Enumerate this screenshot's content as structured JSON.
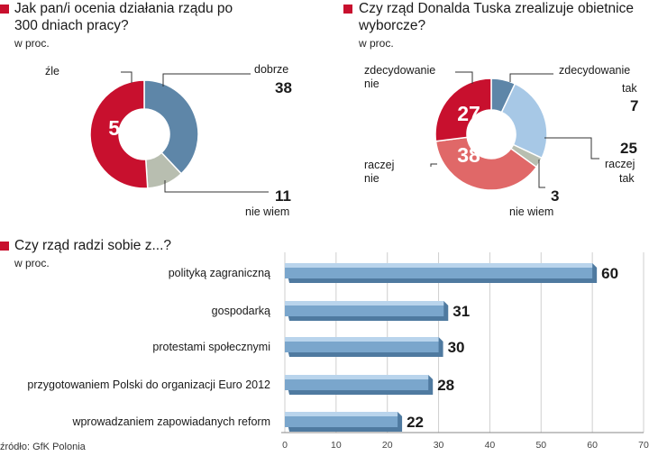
{
  "chart_data": [
    {
      "type": "pie",
      "title": "Jak pan/i ocenia działania rządu po 300 dniach pracy?",
      "subtitle": "w proc.",
      "slices": [
        {
          "label": "dobrze",
          "value": 38,
          "color": "#5e86a8"
        },
        {
          "label": "nie wiem",
          "value": 11,
          "color": "#b8beb0"
        },
        {
          "label": "źle",
          "value": 51,
          "color": "#c8102e"
        }
      ]
    },
    {
      "type": "pie",
      "title": "Czy rząd Donalda Tuska zrealizuje obietnice wyborcze?",
      "subtitle": "w proc.",
      "slices": [
        {
          "label": "zdecydowanie tak",
          "value": 7,
          "color": "#5e86a8"
        },
        {
          "label": "raczej tak",
          "value": 25,
          "color": "#a7c8e6"
        },
        {
          "label": "nie wiem",
          "value": 3,
          "color": "#b8beb0"
        },
        {
          "label": "raczej nie",
          "value": 38,
          "color": "#e06868"
        },
        {
          "label": "zdecydowanie nie",
          "value": 27,
          "color": "#c8102e"
        }
      ]
    },
    {
      "type": "bar",
      "orientation": "horizontal",
      "title": "Czy rząd radzi sobie z...?",
      "subtitle": "w proc.",
      "categories": [
        "polityką zagraniczną",
        "gospodarką",
        "protestami społecznymi",
        "przygotowaniem Polski do organizacji Euro 2012",
        "wprowadzaniem zapowiadanych reform"
      ],
      "values": [
        60,
        31,
        30,
        28,
        22
      ],
      "highlight_color": "#c8102e",
      "bar_color": "#7aa6cc",
      "xlim": [
        0,
        70
      ],
      "xticks": [
        "0",
        "10",
        "20",
        "30",
        "40",
        "50",
        "60",
        "70"
      ]
    }
  ],
  "labels": {
    "pie1": {
      "dobrze": "dobrze",
      "nie_wiem": "nie wiem",
      "zle": "źle",
      "center": "51",
      "v_dobrze": "38",
      "v_nie_wiem": "11"
    },
    "pie2": {
      "zt_1": "zdecydowanie",
      "zt_2": "tak",
      "rt_1": "raczej",
      "rt_2": "tak",
      "nw": "nie wiem",
      "rn_1": "raczej",
      "rn_2": "nie",
      "zn_1": "zdecydowanie",
      "zn_2": "nie",
      "c_zn": "27",
      "c_rn": "38",
      "v_zt": "7",
      "v_rt": "25",
      "v_nw": "3"
    }
  },
  "source": "źródło: GfK Polonia"
}
